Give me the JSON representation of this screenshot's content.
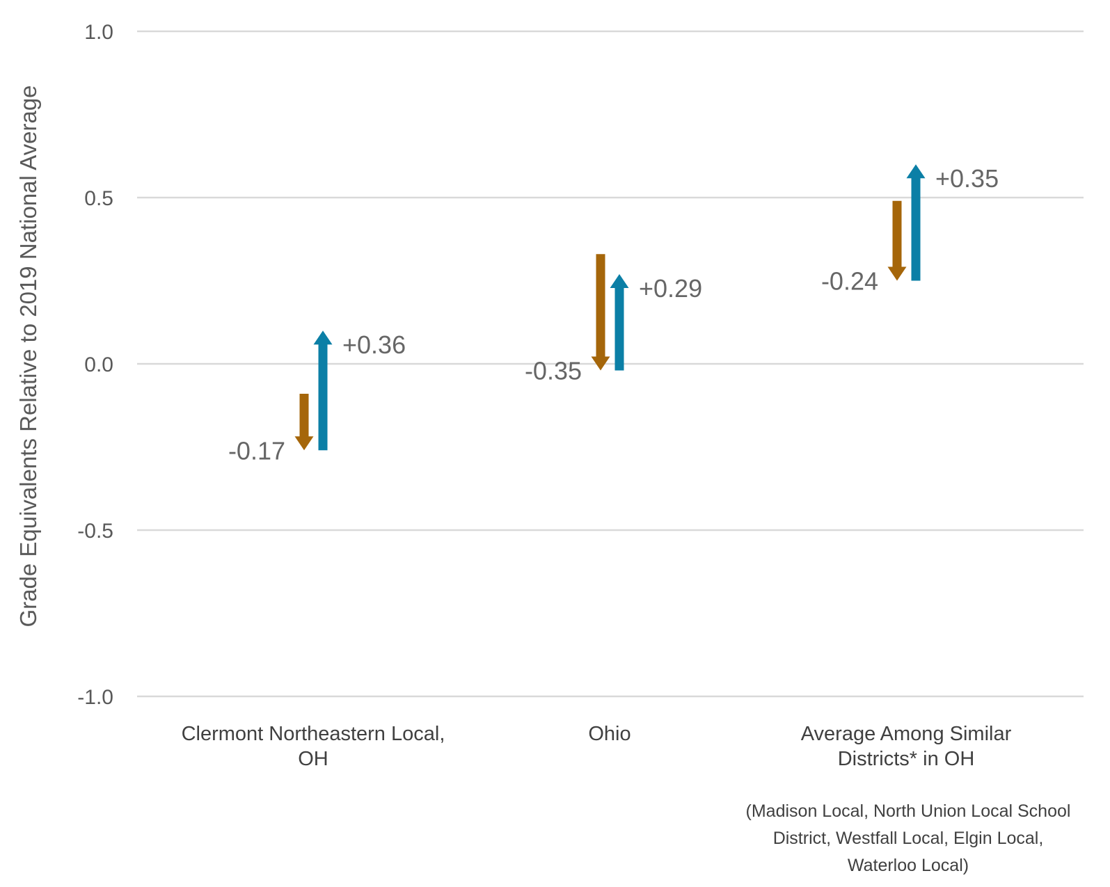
{
  "chart_data": {
    "type": "arrow",
    "title": "",
    "ylabel": "Grade Equivalents Relative to 2019 National Average",
    "ylim": [
      -1.0,
      1.0
    ],
    "yticks": [
      "1.0",
      "0.5",
      "0.0",
      "-0.5",
      "-1.0"
    ],
    "grid": true,
    "legend": "none",
    "colors": {
      "decline": "#a5660a",
      "recovery": "#0b7fa6",
      "grid": "#d9d9d9"
    },
    "categories": [
      {
        "label_lines": [
          "Clermont Northeastern Local,",
          "OH"
        ]
      },
      {
        "label_lines": [
          "Ohio"
        ]
      },
      {
        "label_lines": [
          "Average Among Similar",
          "Districts* in OH"
        ]
      }
    ],
    "series": [
      {
        "values": [
          {
            "start": -0.09,
            "end": -0.26,
            "label": "-0.17"
          },
          {
            "start": 0.33,
            "end": -0.02,
            "label": "-0.35"
          },
          {
            "start": 0.49,
            "end": 0.25,
            "label": "-0.24"
          }
        ]
      },
      {
        "values": [
          {
            "start": -0.26,
            "end": 0.1,
            "label": "+0.36"
          },
          {
            "start": -0.02,
            "end": 0.27,
            "label": "+0.29"
          },
          {
            "start": 0.25,
            "end": 0.6,
            "label": "+0.35"
          }
        ]
      }
    ],
    "footnote_lines": [
      "(Madison Local, North Union Local School",
      "District, Westfall Local, Elgin Local,",
      "Waterloo Local)"
    ]
  }
}
